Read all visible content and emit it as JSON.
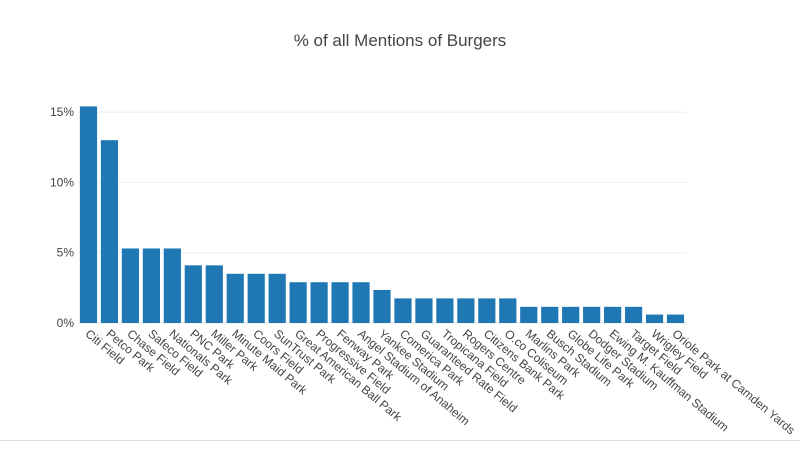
{
  "chart_data": {
    "type": "bar",
    "title": "% of all Mentions of Burgers",
    "xlabel": "",
    "ylabel": "",
    "ylim": [
      0,
      16
    ],
    "yticks": [
      0,
      5,
      10,
      15
    ],
    "ytick_labels": [
      "0%",
      "5%",
      "10%",
      "15%"
    ],
    "grid": true,
    "bar_color": "#1f77b4",
    "categories": [
      "Citi Field",
      "Petco Park",
      "Chase Field",
      "Safeco Field",
      "Nationals Park",
      "PNC Park",
      "Miller Park",
      "Minute Maid Park",
      "Coors Field",
      "SunTrust Park",
      "Great American Ball Park",
      "Progressive Field",
      "Fenway Park",
      "Angel Stadium of Anaheim",
      "Yankee Stadium",
      "Comerica Park",
      "Guaranteed Rate Field",
      "Tropicana Field",
      "Rogers Centre",
      "Citizens Bank Park",
      "O.co Coliseum",
      "Marlins Park",
      "Busch Stadium",
      "Globe Life Park",
      "Dodger Stadium",
      "Ewing M. Kauffman Stadium",
      "Target Field",
      "Wrigley Field",
      "Oriole Park at Camden Yards"
    ],
    "values": [
      15.4,
      13.0,
      5.3,
      5.3,
      5.3,
      4.1,
      4.1,
      3.5,
      3.5,
      3.5,
      2.9,
      2.9,
      2.9,
      2.9,
      2.35,
      1.75,
      1.75,
      1.75,
      1.75,
      1.75,
      1.75,
      1.15,
      1.15,
      1.15,
      1.15,
      1.15,
      1.15,
      0.6,
      0.6
    ]
  }
}
